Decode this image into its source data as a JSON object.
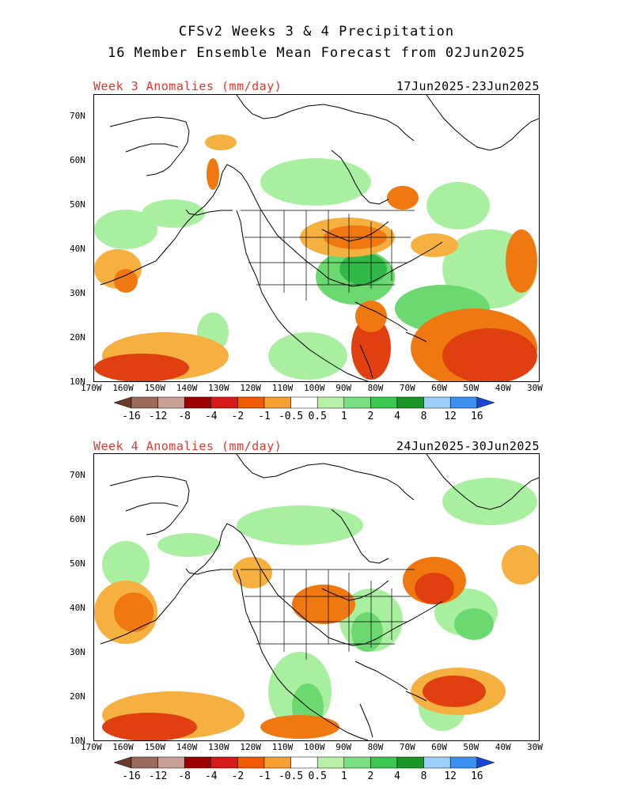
{
  "header": {
    "line1": "CFSv2 Weeks 3 & 4 Precipitation",
    "line2": "16 Member Ensemble Mean Forecast from 02Jun2025"
  },
  "panels": [
    {
      "label": "Week 3 Anomalies (mm/day)",
      "dates": "17Jun2025-23Jun2025"
    },
    {
      "label": "Week 4 Anomalies (mm/day)",
      "dates": "24Jun2025-30Jun2025"
    }
  ],
  "axes": {
    "lon_labels": [
      "170W",
      "160W",
      "150W",
      "140W",
      "130W",
      "120W",
      "110W",
      "100W",
      "90W",
      "80W",
      "70W",
      "60W",
      "50W",
      "40W",
      "30W"
    ],
    "lat_labels": [
      "70N",
      "60N",
      "50N",
      "40N",
      "30N",
      "20N",
      "10N"
    ],
    "lon_range": [
      -170,
      -30
    ],
    "lat_range": [
      10,
      75
    ]
  },
  "colorbar": {
    "labels": [
      "-16",
      "-12",
      "-8",
      "-4",
      "-2",
      "-1",
      "-0.5",
      "0.5",
      "1",
      "2",
      "4",
      "8",
      "12",
      "16"
    ],
    "colors": [
      "#6b3a2a",
      "#9c6a5a",
      "#c8a096",
      "#9c0000",
      "#d61a1a",
      "#f05a00",
      "#f5a030",
      "#ffffff",
      "#b8f0a8",
      "#78e080",
      "#3cc850",
      "#1a9628",
      "#9cd0f8",
      "#3c90f0",
      "#1a46d8"
    ]
  },
  "anomaly_colors": {
    "dry_light": "#f5b040",
    "dry_mid": "#f07810",
    "dry_strong": "#e04010",
    "wet_light": "#a8f0a0",
    "wet_mid": "#6cd870",
    "wet_strong": "#30b848"
  }
}
